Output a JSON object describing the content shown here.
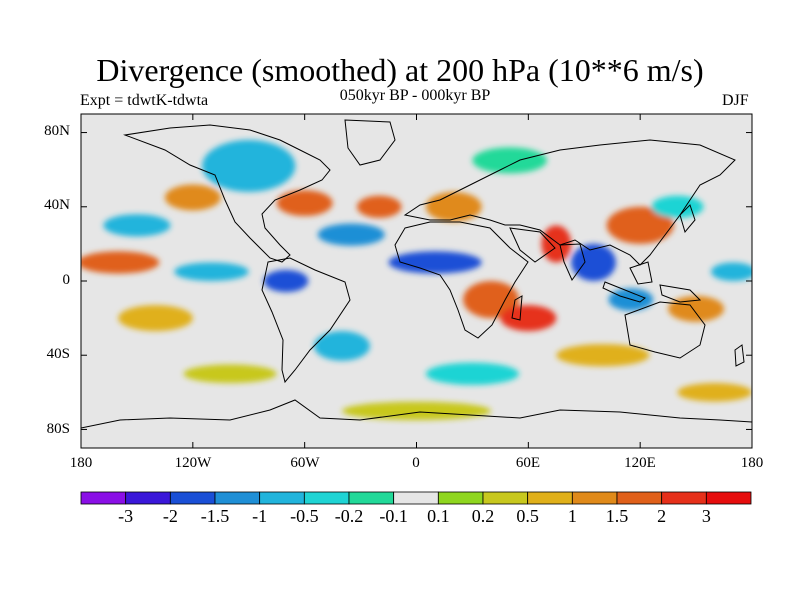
{
  "title": "Divergence (smoothed) at 200 hPa (10**6 m/s)",
  "experiment_label": "Expt = tdwtK-tdwta",
  "period_label": "050kyr BP - 000kyr BP",
  "season_label": "DJF",
  "lat_labels": [
    "80N",
    "40N",
    "0",
    "40S",
    "80S"
  ],
  "lon_labels": [
    "180",
    "120W",
    "60W",
    "0",
    "60E",
    "120E",
    "180"
  ],
  "colorbar": {
    "tick_labels": [
      "-3",
      "-2",
      "-1.5",
      "-1",
      "-0.5",
      "-0.2",
      "-0.1",
      "0.1",
      "0.2",
      "0.5",
      "1",
      "1.5",
      "2",
      "3"
    ],
    "colors": [
      "#8a0fe6",
      "#3a17d9",
      "#1a4fd6",
      "#1f8fd6",
      "#21b4dc",
      "#1fd4d4",
      "#22d999",
      "#e6e6e6",
      "#8fd61f",
      "#c8c81e",
      "#e0b01a",
      "#e08a1a",
      "#e0601a",
      "#e6301a",
      "#e60d0d"
    ]
  },
  "map_blobs": [
    {
      "lon": -160,
      "lat": 10,
      "rx": 22,
      "ry": 6,
      "value": 1.5
    },
    {
      "lon": -140,
      "lat": -20,
      "rx": 20,
      "ry": 7,
      "value": 0.5
    },
    {
      "lon": -150,
      "lat": 30,
      "rx": 18,
      "ry": 6,
      "value": -1
    },
    {
      "lon": -120,
      "lat": 45,
      "rx": 15,
      "ry": 7,
      "value": 1
    },
    {
      "lon": -90,
      "lat": 62,
      "rx": 25,
      "ry": 14,
      "value": -1
    },
    {
      "lon": -60,
      "lat": 42,
      "rx": 15,
      "ry": 7,
      "value": 1.5
    },
    {
      "lon": -70,
      "lat": 0,
      "rx": 12,
      "ry": 6,
      "value": -2
    },
    {
      "lon": -110,
      "lat": 5,
      "rx": 20,
      "ry": 5,
      "value": -1
    },
    {
      "lon": -40,
      "lat": -35,
      "rx": 15,
      "ry": 8,
      "value": -1
    },
    {
      "lon": -35,
      "lat": 25,
      "rx": 18,
      "ry": 6,
      "value": -1.5
    },
    {
      "lon": -20,
      "lat": 40,
      "rx": 12,
      "ry": 6,
      "value": 1.5
    },
    {
      "lon": 20,
      "lat": 40,
      "rx": 15,
      "ry": 8,
      "value": 1
    },
    {
      "lon": 10,
      "lat": 10,
      "rx": 25,
      "ry": 6,
      "value": -2
    },
    {
      "lon": 40,
      "lat": -10,
      "rx": 15,
      "ry": 10,
      "value": 1.5
    },
    {
      "lon": 60,
      "lat": -20,
      "rx": 15,
      "ry": 7,
      "value": 2
    },
    {
      "lon": 75,
      "lat": 20,
      "rx": 8,
      "ry": 10,
      "value": 2
    },
    {
      "lon": 95,
      "lat": 10,
      "rx": 12,
      "ry": 10,
      "value": -2
    },
    {
      "lon": 120,
      "lat": 30,
      "rx": 18,
      "ry": 10,
      "value": 1.5
    },
    {
      "lon": 115,
      "lat": -10,
      "rx": 12,
      "ry": 6,
      "value": -1.5
    },
    {
      "lon": 150,
      "lat": -15,
      "rx": 15,
      "ry": 7,
      "value": 1
    },
    {
      "lon": 140,
      "lat": 40,
      "rx": 14,
      "ry": 6,
      "value": -0.5
    },
    {
      "lon": 170,
      "lat": 5,
      "rx": 12,
      "ry": 5,
      "value": -1
    },
    {
      "lon": 100,
      "lat": -40,
      "rx": 25,
      "ry": 6,
      "value": 0.5
    },
    {
      "lon": 30,
      "lat": -50,
      "rx": 25,
      "ry": 6,
      "value": -0.5
    },
    {
      "lon": -100,
      "lat": -50,
      "rx": 25,
      "ry": 5,
      "value": 0.2
    },
    {
      "lon": 0,
      "lat": -70,
      "rx": 40,
      "ry": 5,
      "value": 0.2
    },
    {
      "lon": 160,
      "lat": -60,
      "rx": 20,
      "ry": 5,
      "value": 0.5
    },
    {
      "lon": 50,
      "lat": 65,
      "rx": 20,
      "ry": 7,
      "value": -0.2
    }
  ]
}
